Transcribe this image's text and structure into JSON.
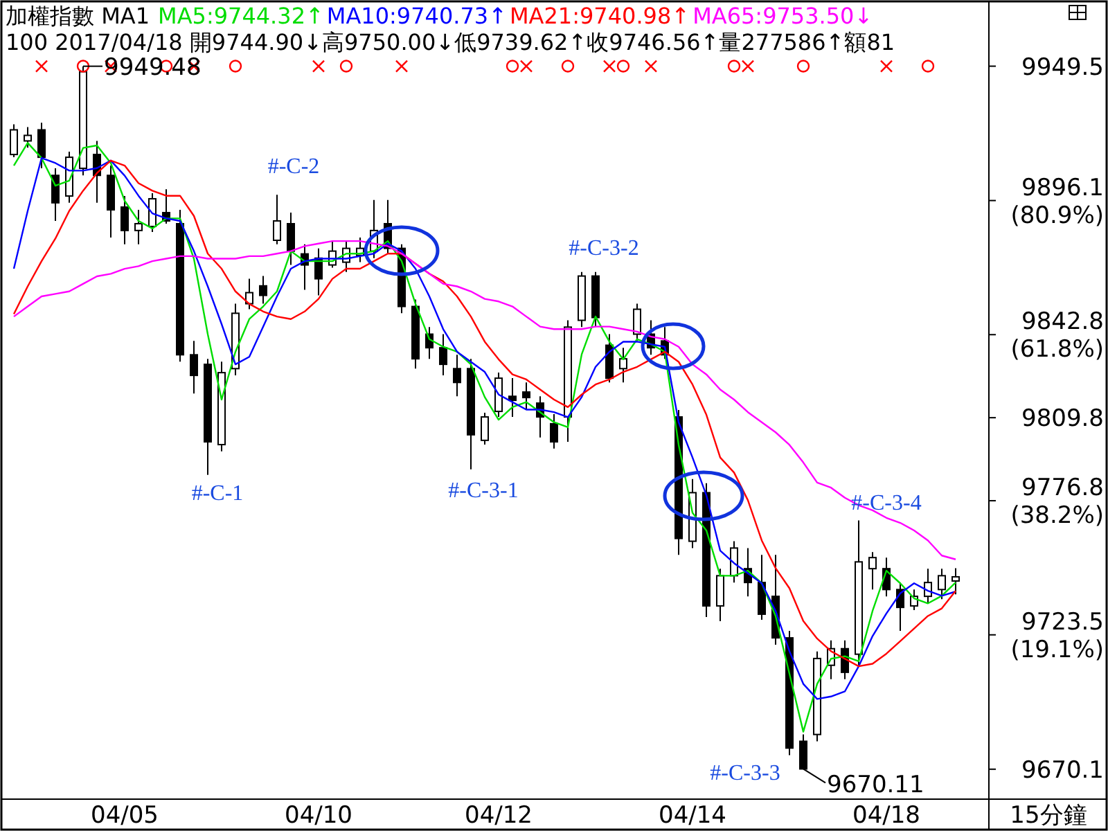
{
  "chart_data": {
    "type": "candlestick",
    "title": "加權指數 MA1",
    "subtitle": "100 2017/04/18 開9744.90↓高9750.00↓低9739.62↑收9746.56↑量277586↑額81",
    "categories": [
      null,
      null,
      null,
      null,
      null,
      null,
      null,
      null,
      "04/05",
      null,
      null,
      null,
      null,
      null,
      null,
      null,
      null,
      null,
      null,
      null,
      null,
      null,
      "04/10",
      null,
      null,
      null,
      null,
      null,
      null,
      null,
      null,
      null,
      null,
      null,
      null,
      "04/12",
      null,
      null,
      null,
      null,
      null,
      null,
      null,
      null,
      null,
      null,
      null,
      null,
      null,
      "04/14",
      null,
      null,
      null,
      null,
      null,
      null,
      null,
      null,
      null,
      null,
      null,
      null,
      null,
      "04/18",
      null,
      null,
      null,
      null,
      null
    ],
    "ohlc": [
      [
        9914.4,
        9926.4,
        9913.3,
        9924.2
      ],
      [
        9919.8,
        9925.3,
        9917.1,
        9922.0
      ],
      [
        9924.2,
        9927.0,
        9908.9,
        9913.3
      ],
      [
        9906.1,
        9908.9,
        9888.0,
        9895.2
      ],
      [
        9897.9,
        9915.5,
        9895.2,
        9913.3
      ],
      [
        9908.9,
        9949.48,
        9906.1,
        9947.3
      ],
      [
        9914.4,
        9919.8,
        9895.2,
        9906.1
      ],
      [
        9906.1,
        9910.0,
        9881.4,
        9892.4
      ],
      [
        9893.5,
        9897.9,
        9878.7,
        9884.2
      ],
      [
        9884.2,
        9892.4,
        9878.7,
        9886.9
      ],
      [
        9885.8,
        9899.0,
        9883.6,
        9896.8
      ],
      [
        9891.3,
        9900.6,
        9886.9,
        9888.0
      ],
      [
        9886.9,
        9892.4,
        9832.1,
        9834.8
      ],
      [
        9834.8,
        9840.3,
        9819.4,
        9826.6
      ],
      [
        9831.0,
        9833.2,
        9787.1,
        9800.2
      ],
      [
        9799.1,
        9832.1,
        9796.4,
        9827.7
      ],
      [
        9829.3,
        9855.1,
        9826.6,
        9851.3
      ],
      [
        9855.1,
        9865.0,
        9852.9,
        9859.5
      ],
      [
        9862.2,
        9866.1,
        9855.1,
        9858.4
      ],
      [
        9880.3,
        9898.4,
        9878.7,
        9888.0
      ],
      [
        9886.9,
        9891.3,
        9870.5,
        9876.0
      ],
      [
        9874.9,
        9878.7,
        9860.6,
        9870.5
      ],
      [
        9873.2,
        9877.1,
        9858.4,
        9865.0
      ],
      [
        9870.5,
        9880.3,
        9869.4,
        9876.0
      ],
      [
        9871.6,
        9880.3,
        9867.7,
        9877.1
      ],
      [
        9874.3,
        9881.4,
        9871.6,
        9877.1
      ],
      [
        9876.0,
        9896.3,
        9873.2,
        9884.2
      ],
      [
        9886.9,
        9896.3,
        9874.9,
        9877.1
      ],
      [
        9877.1,
        9878.7,
        9851.3,
        9854.0
      ],
      [
        9854.0,
        9856.8,
        9829.3,
        9833.2
      ],
      [
        9843.0,
        9845.8,
        9833.2,
        9837.6
      ],
      [
        9837.6,
        9843.0,
        9826.6,
        9831.0
      ],
      [
        9829.3,
        9834.8,
        9818.3,
        9823.8
      ],
      [
        9829.3,
        9833.2,
        9789.3,
        9803.0
      ],
      [
        9800.8,
        9811.8,
        9799.1,
        9810.1
      ],
      [
        9812.3,
        9827.7,
        9810.1,
        9825.5
      ],
      [
        9818.3,
        9825.5,
        9810.1,
        9816.7
      ],
      [
        9820.0,
        9823.8,
        9812.9,
        9817.8
      ],
      [
        9815.6,
        9818.3,
        9801.9,
        9810.1
      ],
      [
        9807.4,
        9811.2,
        9797.5,
        9800.2
      ],
      [
        9810.1,
        9848.5,
        9800.2,
        9845.8
      ],
      [
        9848.5,
        9867.7,
        9845.8,
        9866.1
      ],
      [
        9866.1,
        9867.7,
        9845.8,
        9849.6
      ],
      [
        9838.6,
        9843.0,
        9823.8,
        9825.5
      ],
      [
        9829.3,
        9837.6,
        9823.8,
        9833.2
      ],
      [
        9843.0,
        9855.1,
        9840.3,
        9852.9
      ],
      [
        9843.0,
        9848.5,
        9834.8,
        9837.6
      ],
      [
        9840.3,
        9845.8,
        9833.2,
        9834.8
      ],
      [
        9810.1,
        9812.9,
        9755.3,
        9761.8
      ],
      [
        9760.7,
        9785.4,
        9758.0,
        9780.0
      ],
      [
        9780.0,
        9783.8,
        9730.6,
        9735.0
      ],
      [
        9735.0,
        9749.8,
        9728.9,
        9747.0
      ],
      [
        9747.0,
        9760.7,
        9744.3,
        9758.0
      ],
      [
        9749.8,
        9758.0,
        9738.8,
        9744.3
      ],
      [
        9744.3,
        9755.3,
        9729.5,
        9731.7
      ],
      [
        9738.8,
        9755.3,
        9719.6,
        9722.3
      ],
      [
        9722.3,
        9725.1,
        9675.7,
        9678.5
      ],
      [
        9681.2,
        9683.9,
        9670.11,
        9670.2
      ],
      [
        9683.9,
        9716.9,
        9681.2,
        9714.1
      ],
      [
        9711.4,
        9721.3,
        9705.9,
        9718.0
      ],
      [
        9718.0,
        9721.3,
        9705.9,
        9708.6
      ],
      [
        9715.8,
        9769.0,
        9711.4,
        9752.5
      ],
      [
        9749.8,
        9756.4,
        9741.5,
        9754.2
      ],
      [
        9749.8,
        9754.2,
        9738.8,
        9741.5
      ],
      [
        9741.5,
        9744.3,
        9725.1,
        9734.4
      ],
      [
        9735.0,
        9741.5,
        9733.3,
        9738.8
      ],
      [
        9738.8,
        9749.8,
        9736.1,
        9744.3
      ],
      [
        9741.5,
        9749.8,
        9737.7,
        9747.0
      ],
      [
        9744.9,
        9750.0,
        9739.62,
        9746.56
      ]
    ],
    "series": [
      {
        "type": "line",
        "name": "MA5:9744.32↑",
        "color": "#00dd00",
        "values": [
          9910,
          9919,
          9913,
          9902,
          9904,
          9917,
          9918,
          9911,
          9896,
          9888,
          9885,
          9889,
          9889,
          9873,
          9843,
          9817,
          9836,
          9849,
          9854,
          9860,
          9876,
          9872,
          9872,
          9872,
          9875,
          9875,
          9876,
          9880,
          9872,
          9855,
          9841,
          9838,
          9836,
          9831,
          9818,
          9809,
          9814,
          9816,
          9812,
          9808,
          9806,
          9835,
          9850,
          9840,
          9833,
          9841,
          9839,
          9836,
          9799,
          9772,
          9765,
          9747,
          9747,
          9749,
          9744,
          9731,
          9708,
          9685,
          9704,
          9714,
          9715,
          9713,
          9733,
          9749,
          9744,
          9738,
          9736,
          9739,
          9744.3
        ]
      },
      {
        "type": "line",
        "name": "MA10:9740.73↑",
        "color": "#0000ff",
        "values": [
          9869,
          9892,
          9913,
          9911,
          9908,
          9908,
          9909,
          9912,
          9906,
          9898,
          9891,
          9889,
          9888,
          9876,
          9862,
          9847,
          9831,
          9834,
          9846,
          9858,
          9869,
          9872,
          9873,
          9873,
          9873,
          9874,
          9875,
          9879,
          9876,
          9869,
          9858,
          9845,
          9836,
          9832,
          9828,
          9819,
          9816,
          9813,
          9813,
          9812,
          9810,
          9818,
          9830,
          9836,
          9840,
          9840,
          9839,
          9838,
          9808,
          9794,
          9779,
          9757,
          9752,
          9748,
          9744,
          9733,
          9717,
          9704,
          9698,
          9699,
          9701,
          9711,
          9723,
          9732,
          9740,
          9744,
          9741,
          9739,
          9740.7
        ]
      },
      {
        "type": "line",
        "name": "MA21:9740.98↑",
        "color": "#ff0000",
        "values": [
          9851,
          9862,
          9872,
          9881,
          9892,
          9900,
          9907,
          9912,
          9910,
          9903,
          9900,
          9898,
          9898,
          9890,
          9875,
          9869,
          9860,
          9855,
          9852,
          9850,
          9849,
          9852,
          9857,
          9865,
          9869,
          9869,
          9872,
          9875,
          9875,
          9871,
          9867,
          9864,
          9858,
          9850,
          9840,
          9833,
          9827,
          9825,
          9821,
          9817,
          9814,
          9819,
          9823,
          9825,
          9828,
          9830,
          9833,
          9836,
          9832,
          9823,
          9811,
          9794,
          9788,
          9777,
          9761,
          9750,
          9742,
          9729,
          9722,
          9717,
          9714,
          9711,
          9712,
          9716,
          9721,
          9726,
          9731,
          9734,
          9741.0
        ]
      },
      {
        "type": "line",
        "name": "MA65:9753.50↓",
        "color": "#ff00ff",
        "values": [
          9850,
          9854,
          9858,
          9859,
          9860,
          9863,
          9866,
          9867,
          9869,
          9870,
          9872,
          9873,
          9874,
          9874,
          9873,
          9873,
          9873,
          9874,
          9874,
          9875,
          9876,
          9878,
          9879,
          9880,
          9880,
          9880,
          9879,
          9878,
          9875,
          9871,
          9867,
          9863,
          9862,
          9860,
          9857,
          9856,
          9854,
          9850,
          9846,
          9845,
          9845,
          9845,
          9846,
          9846,
          9845,
          9844,
          9842,
          9841,
          9838,
          9831,
          9827,
          9821,
          9817,
          9812,
          9808,
          9804,
          9799,
          9792,
          9784,
          9782,
          9778,
          9775,
          9773,
          9770,
          9768,
          9765,
          9761,
          9755,
          9753.5
        ]
      },
      {
        "type": "scatter",
        "marker": "cross",
        "color": "#ff0000",
        "values": [
          null,
          null,
          9949.5,
          null,
          null,
          null,
          null,
          9949.5,
          null,
          null,
          null,
          null,
          null,
          9949.5,
          null,
          null,
          null,
          null,
          null,
          null,
          null,
          null,
          9949.5,
          null,
          null,
          null,
          null,
          null,
          9949.5,
          null,
          null,
          null,
          null,
          null,
          null,
          null,
          null,
          9949.5,
          null,
          null,
          null,
          null,
          null,
          9949.5,
          null,
          null,
          9949.5,
          null,
          null,
          null,
          null,
          null,
          null,
          9949.5,
          null,
          null,
          null,
          null,
          null,
          null,
          null,
          null,
          null,
          9949.5,
          null,
          null,
          null,
          null,
          null
        ]
      },
      {
        "type": "scatter",
        "marker": "circle",
        "color": "#ff0000",
        "values": [
          null,
          null,
          null,
          null,
          null,
          9949.5,
          null,
          null,
          null,
          null,
          null,
          9949.5,
          null,
          null,
          null,
          null,
          9949.5,
          null,
          null,
          null,
          null,
          null,
          null,
          null,
          9949.5,
          null,
          null,
          null,
          null,
          null,
          null,
          null,
          null,
          null,
          null,
          null,
          9949.5,
          null,
          null,
          null,
          9949.5,
          null,
          null,
          null,
          9949.5,
          null,
          null,
          null,
          null,
          null,
          null,
          null,
          9949.5,
          null,
          null,
          null,
          null,
          9949.5,
          null,
          null,
          null,
          null,
          null,
          null,
          null,
          null,
          9949.5,
          null,
          null
        ]
      }
    ],
    "ylim": [
      9658.2,
      9974.7
    ],
    "yticks": [
      9949.5,
      {
        "value": 9896.1,
        "label": "9896.1 (80.9%)"
      },
      {
        "value": 9842.8,
        "label": "9842.8 (61.8%)"
      },
      9809.8,
      {
        "value": 9776.8,
        "label": "9776.8 (38.2%)"
      },
      {
        "value": 9723.5,
        "label": "9723.5 (19.1%)"
      },
      9670.1
    ],
    "legend": "top",
    "annotations": [
      "#-C-1",
      "#-C-2",
      "#-C-3-1",
      "#-C-3-2",
      "#-C-3-3",
      "#-C-3-4",
      "9949.48",
      "9670.11"
    ],
    "xlabel": "15分鐘"
  }
}
